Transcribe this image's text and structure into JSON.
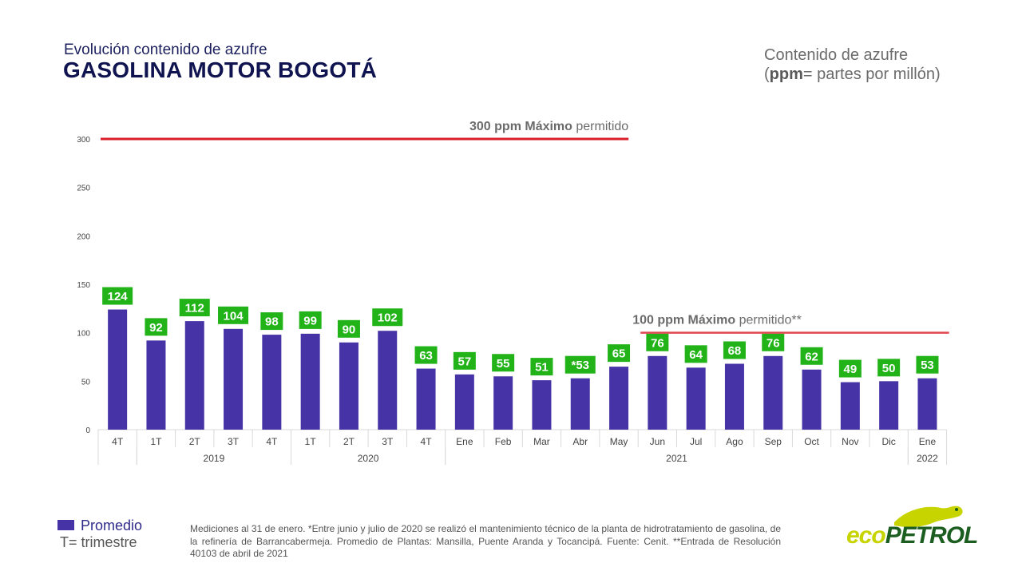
{
  "header": {
    "subtitle": "Evolución contenido de azufre",
    "title": "GASOLINA MOTOR BOGOTÁ",
    "unit_line1": "Contenido de azufre",
    "unit_bold1": "ppm",
    "unit_rest": "= partes por millón"
  },
  "chart_data": {
    "type": "bar",
    "categories": [
      "4T",
      "1T",
      "2T",
      "3T",
      "4T",
      "1T",
      "2T",
      "3T",
      "4T",
      "Ene",
      "Feb",
      "Mar",
      "Abr",
      "May",
      "Jun",
      "Jul",
      "Ago",
      "Sep",
      "Oct",
      "Nov",
      "Dic",
      "Ene"
    ],
    "values": [
      124,
      92,
      112,
      104,
      98,
      99,
      90,
      102,
      63,
      57,
      55,
      51,
      53,
      65,
      76,
      64,
      68,
      76,
      62,
      49,
      50,
      53
    ],
    "data_labels": [
      "124",
      "92",
      "112",
      "104",
      "98",
      "99",
      "90",
      "102",
      "63",
      "57",
      "55",
      "51",
      "*53",
      "65",
      "76",
      "64",
      "68",
      "76",
      "62",
      "49",
      "50",
      "53"
    ],
    "groups": [
      {
        "label": "",
        "start": 0,
        "end": 0
      },
      {
        "label": "2019",
        "start": 1,
        "end": 4
      },
      {
        "label": "2020",
        "start": 5,
        "end": 8
      },
      {
        "label": "2021",
        "start": 9,
        "end": 20
      },
      {
        "label": "2022",
        "start": 21,
        "end": 21
      }
    ],
    "ylim": [
      0,
      300
    ],
    "yticks": [
      0,
      50,
      100,
      150,
      200,
      250,
      300
    ],
    "reference_lines": [
      {
        "value": 300,
        "bold": "300 ppm Máximo",
        "rest": " permitido",
        "start": 0,
        "end": 14,
        "color": "#d81e2a"
      },
      {
        "value": 100,
        "bold": "100 ppm Máximo",
        "rest": " permitido**",
        "start": 14,
        "end": 21,
        "color": "#e0474f"
      }
    ],
    "bar_color": "#4634a7",
    "label_color": "#21b317"
  },
  "legend": {
    "series_name": "Promedio",
    "note": "T= trimestre"
  },
  "footnote": "Mediciones al 31 de enero. *Entre junio y julio de 2020 se realizó el mantenimiento técnico de la planta de hidrotratamiento de gasolina, de la refinería de Barrancabermeja. Promedio de Plantas: Mansilla, Puente Aranda y Tocancipá. Fuente: Cenit. **Entrada de Resolución 40103 de abril de 2021",
  "logo": {
    "part1": "eco",
    "part2": "PETROL"
  }
}
